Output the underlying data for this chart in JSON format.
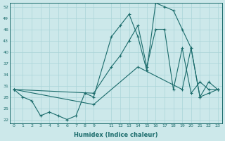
{
  "xlabel": "Humidex (Indice chaleur)",
  "bg_color": "#cce8ea",
  "line_color": "#1a6b6b",
  "grid_color": "#aad4d8",
  "xlim": [
    -0.5,
    23.5
  ],
  "ylim": [
    21,
    53
  ],
  "yticks": [
    22,
    25,
    28,
    31,
    34,
    37,
    40,
    43,
    46,
    49,
    52
  ],
  "xticks": [
    0,
    1,
    2,
    3,
    4,
    5,
    6,
    7,
    8,
    9,
    11,
    12,
    13,
    14,
    15,
    16,
    17,
    18,
    19,
    20,
    21,
    22,
    23
  ],
  "s1_x": [
    0,
    1,
    2,
    3,
    4,
    5,
    6,
    7,
    8,
    9,
    11,
    12,
    13,
    14,
    15,
    16,
    17,
    18,
    19,
    20,
    21,
    22,
    23
  ],
  "s1_y": [
    30,
    28,
    27,
    23,
    24,
    23,
    22,
    23,
    29,
    28,
    44,
    47,
    50,
    44,
    35,
    53,
    52,
    51,
    46,
    41,
    28,
    32,
    30
  ],
  "s2_x": [
    0,
    9,
    11,
    12,
    13,
    14,
    15,
    16,
    17,
    18,
    19,
    20,
    21,
    22,
    23
  ],
  "s2_y": [
    30,
    29,
    36,
    39,
    43,
    47,
    36,
    46,
    46,
    30,
    41,
    29,
    32,
    30,
    30
  ],
  "s3_x": [
    0,
    9,
    14,
    19,
    20,
    21,
    22,
    23
  ],
  "s3_y": [
    30,
    26,
    36,
    30,
    41,
    28,
    29,
    30
  ]
}
